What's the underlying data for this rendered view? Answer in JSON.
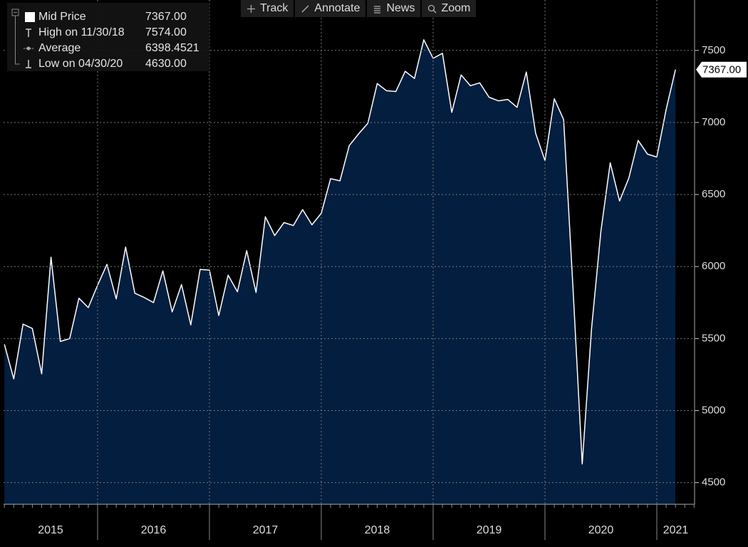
{
  "toolbar": [
    "Track",
    "Annotate",
    "News",
    "Zoom"
  ],
  "legend": [
    {
      "label": "Mid Price",
      "value": "7367.00"
    },
    {
      "label": "High on 11/30/18",
      "value": "7574.00"
    },
    {
      "label": "Average",
      "value": "6398.4521"
    },
    {
      "label": "Low on 04/30/20",
      "value": "4630.00"
    }
  ],
  "chart_data": {
    "type": "area",
    "series": [
      {
        "color": "#ffffff",
        "fill": "#041e3f",
        "values": [
          5460,
          5220,
          5600,
          5570,
          5255,
          6065,
          5480,
          5500,
          5780,
          5715,
          5870,
          6015,
          5775,
          6135,
          5815,
          5785,
          5750,
          5970,
          5685,
          5875,
          5595,
          5980,
          5975,
          5660,
          5940,
          5825,
          6110,
          5820,
          6345,
          6215,
          6305,
          6285,
          6395,
          6290,
          6370,
          6610,
          6595,
          6840,
          6920,
          6995,
          7270,
          7220,
          7215,
          7355,
          7305,
          7574,
          7445,
          7480,
          7070,
          7330,
          7255,
          7275,
          7175,
          7150,
          7160,
          7105,
          7350,
          6925,
          6735,
          7165,
          7020,
          5855,
          4630,
          5570,
          6245,
          6720,
          6455,
          6615,
          6875,
          6780,
          6760,
          7090,
          7367
        ]
      }
    ],
    "year_labels": [
      "2015",
      "2016",
      "2017",
      "2018",
      "2019",
      "2020",
      "2021"
    ],
    "ylim": [
      4350,
      7850
    ],
    "yticks": [
      4500,
      5000,
      5500,
      6000,
      6500,
      7000,
      7500
    ],
    "grid": true,
    "last_value_label": "7367.00"
  }
}
